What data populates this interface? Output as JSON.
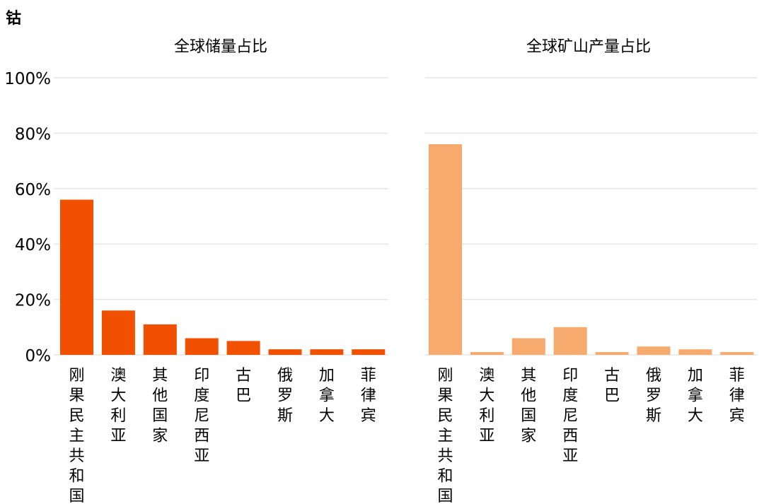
{
  "figure_title": "钴",
  "colors": {
    "reserves": "#f05000",
    "production": "#f7aa6e",
    "grid": "#e6e6e6"
  },
  "chart_data": [
    {
      "type": "bar",
      "title": "全球储量占比",
      "categories": [
        "刚果民主共和国",
        "澳大利亚",
        "其他国家",
        "印度尼西亚",
        "古巴",
        "俄罗斯",
        "加拿大",
        "菲律宾"
      ],
      "values": [
        0.56,
        0.16,
        0.11,
        0.06,
        0.05,
        0.02,
        0.02,
        0.02
      ],
      "ylim": [
        0,
        1
      ],
      "yticks": [
        "0%",
        "20%",
        "40%",
        "60%",
        "80%",
        "100%"
      ],
      "grid": true,
      "color": "#f05000"
    },
    {
      "type": "bar",
      "title": "全球矿山产量占比",
      "categories": [
        "刚果民主共和国",
        "澳大利亚",
        "其他国家",
        "印度尼西亚",
        "古巴",
        "俄罗斯",
        "加拿大",
        "菲律宾"
      ],
      "values": [
        0.76,
        0.01,
        0.06,
        0.1,
        0.01,
        0.03,
        0.02,
        0.01
      ],
      "ylim": [
        0,
        1
      ],
      "grid": true,
      "color": "#f7aa6e"
    }
  ]
}
